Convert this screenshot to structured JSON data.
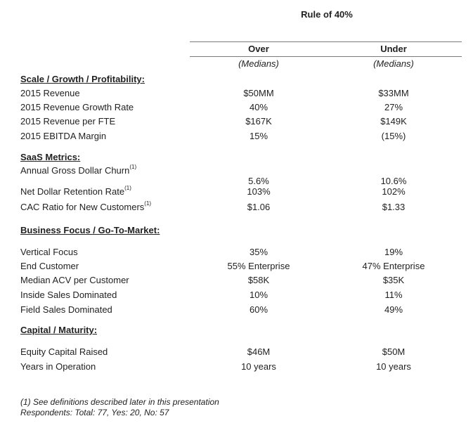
{
  "title": "Rule of 40%",
  "columns": {
    "over": {
      "header": "Over",
      "sub": "(Medians)"
    },
    "under": {
      "header": "Under",
      "sub": "(Medians)"
    }
  },
  "sections": {
    "scale": {
      "title": "Scale / Growth / Profitability:",
      "rows": [
        {
          "label": "2015 Revenue",
          "over": "$50MM",
          "under": "$33MM"
        },
        {
          "label": "2015 Revenue Growth Rate",
          "over": "40%",
          "under": "27%"
        },
        {
          "label": "2015 Revenue per FTE",
          "over": "$167K",
          "under": "$149K"
        },
        {
          "label": "2015 EBITDA Margin",
          "over": "15%",
          "under": "(15%)"
        }
      ]
    },
    "saas": {
      "title": "SaaS Metrics:",
      "rows": [
        {
          "label": "Annual Gross Dollar Churn",
          "note": "(1)",
          "over": "5.6%",
          "under": "10.6%"
        },
        {
          "label": "Net Dollar Retention Rate",
          "note": "(1)",
          "over": "103%",
          "under": "102%"
        },
        {
          "label": "CAC Ratio for New Customers",
          "note": "(1)",
          "over": "$1.06",
          "under": "$1.33"
        }
      ]
    },
    "business": {
      "title": "Business Focus / Go-To-Market:",
      "rows": [
        {
          "label": "Vertical Focus",
          "over": "35%",
          "under": "19%"
        },
        {
          "label": "End Customer",
          "over": "55% Enterprise",
          "under": "47% Enterprise"
        },
        {
          "label": "Median ACV per Customer",
          "over": "$58K",
          "under": "$35K"
        },
        {
          "label": "Inside Sales Dominated",
          "over": "10%",
          "under": "11%"
        },
        {
          "label": "Field Sales Dominated",
          "over": "60%",
          "under": "49%"
        }
      ]
    },
    "capital": {
      "title": "Capital / Maturity:",
      "rows": [
        {
          "label": "Equity Capital Raised",
          "over": "$46M",
          "under": "$50M"
        },
        {
          "label": "Years in Operation",
          "over": "10 years",
          "under": "10 years"
        }
      ]
    }
  },
  "footnotes": {
    "line1": "(1) See definitions described later in this presentation",
    "line2": "Respondents: Total: 77, Yes: 20, No: 57"
  }
}
